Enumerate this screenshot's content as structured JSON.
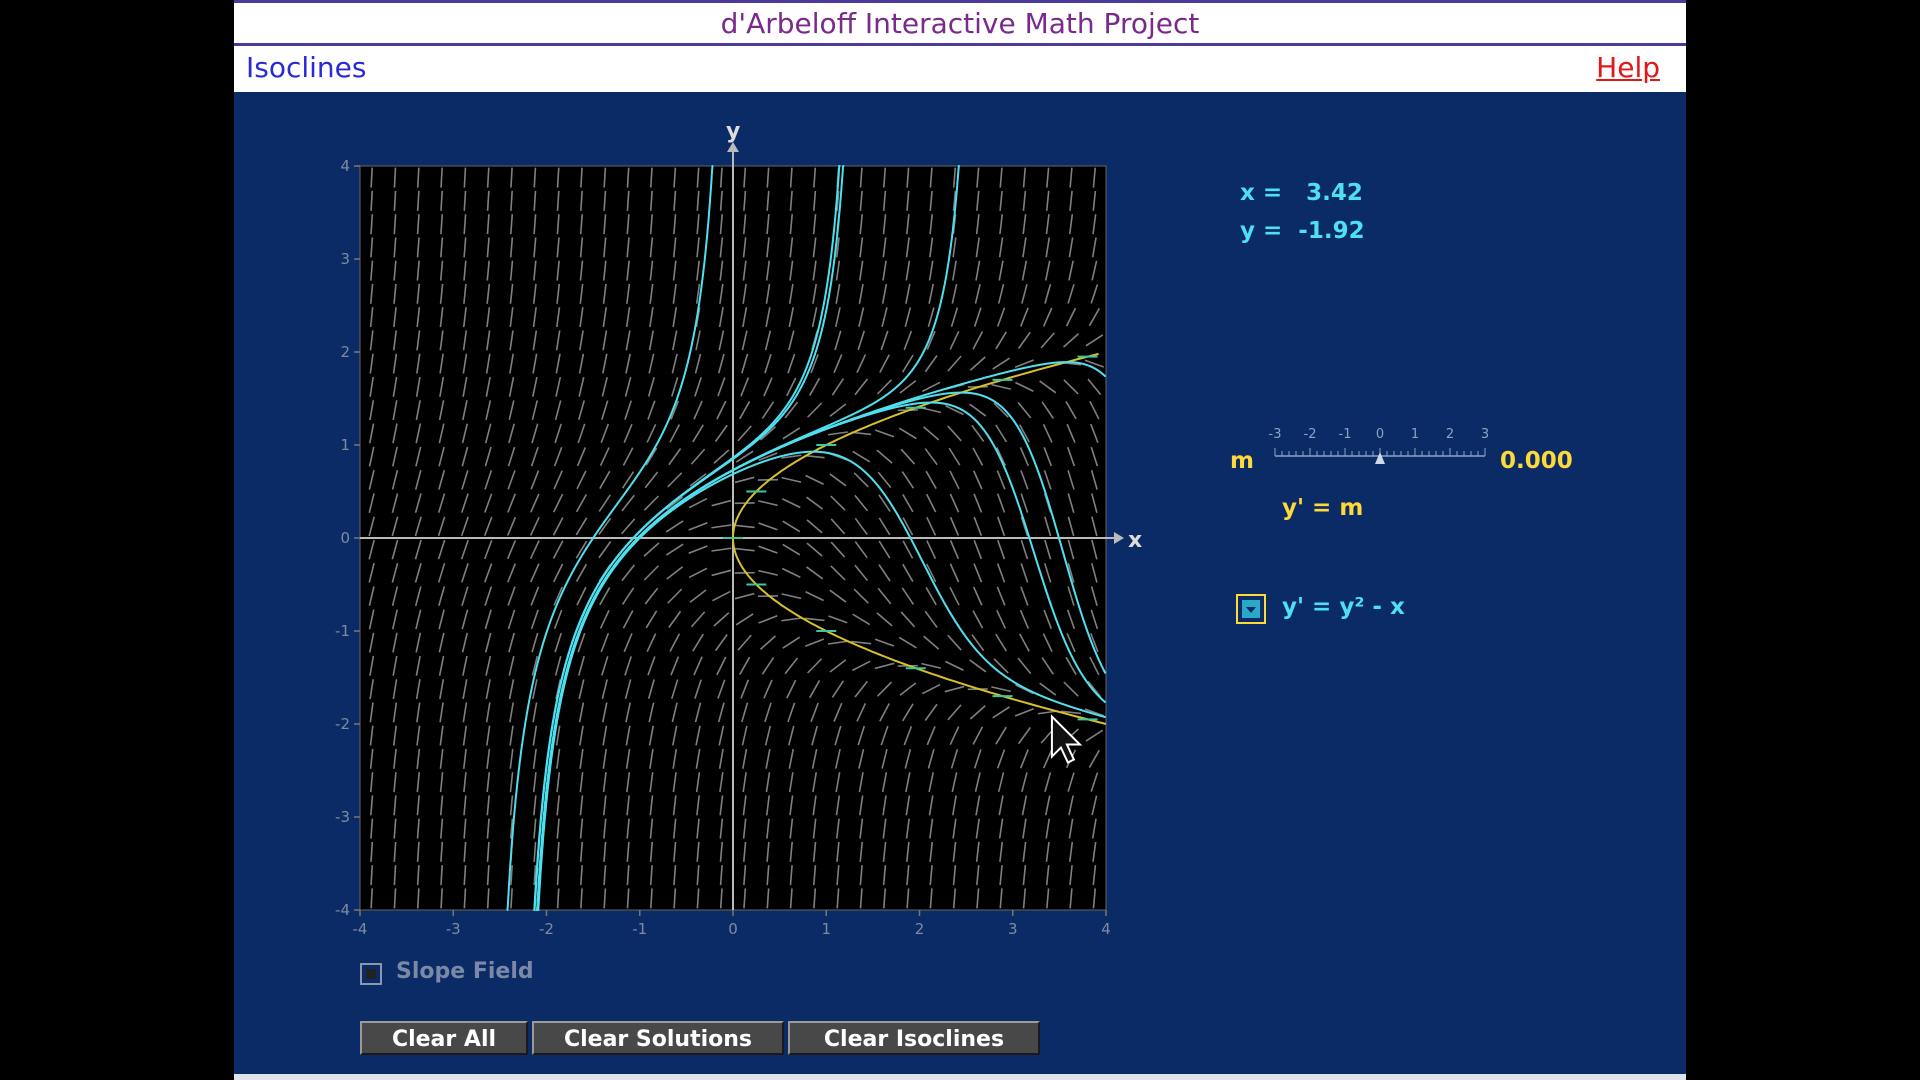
{
  "header": {
    "title": "d'Arbeloff Interactive Math Project"
  },
  "subheader": {
    "module": "Isoclines",
    "help": "Help"
  },
  "readout": {
    "x_text": "x =   3.42",
    "y_text": "y =  -1.92"
  },
  "slider": {
    "label": "m",
    "value_text": "0.000",
    "value": 0,
    "min": -3,
    "max": 3,
    "tick_labels": [
      "-3",
      "-2",
      "-1",
      "0",
      "1",
      "2",
      "3"
    ],
    "isocline_eq": "y' = m"
  },
  "equation": {
    "label": "y' = y² - x"
  },
  "slope_field": {
    "label": "Slope Field"
  },
  "buttons": {
    "clear_all": "Clear All",
    "clear_solutions": "Clear Solutions",
    "clear_isoclines": "Clear Isoclines"
  },
  "colors": {
    "panel_bg": "#0a2b66",
    "solution": "#4fe0f0",
    "isocline": "#d8c02a",
    "slope_segments": "#808080"
  },
  "icons": {
    "cursor": "cursor-arrow-icon",
    "dropdown": "dropdown-arrow-icon"
  },
  "chart_data": {
    "type": "line",
    "xlabel": "x",
    "ylabel": "y",
    "xlim": [
      -4,
      4
    ],
    "ylim": [
      -4,
      4
    ],
    "x_ticks": [
      "-4",
      "-3",
      "-2",
      "-1",
      "0",
      "1",
      "2",
      "3",
      "4"
    ],
    "y_ticks": [
      "-4",
      "-3",
      "-2",
      "-1",
      "0",
      "1",
      "2",
      "3",
      "4"
    ],
    "slope_field": true,
    "isocline": {
      "m": 0,
      "equation": "x = y^2 - m"
    },
    "solutions": [
      {
        "x0": -1.0,
        "y0": 0.0
      },
      {
        "x0": -1.5,
        "y0": 0.0
      },
      {
        "x0": -0.5,
        "y0": 0.5
      },
      {
        "x0": 0.0,
        "y0": 0.85
      },
      {
        "x0": 1.0,
        "y0": 1.2
      },
      {
        "x0": 2.0,
        "y0": 1.45
      },
      {
        "x0": 3.0,
        "y0": 1.8
      },
      {
        "x0": 2.6,
        "y0": 1.55
      }
    ]
  }
}
